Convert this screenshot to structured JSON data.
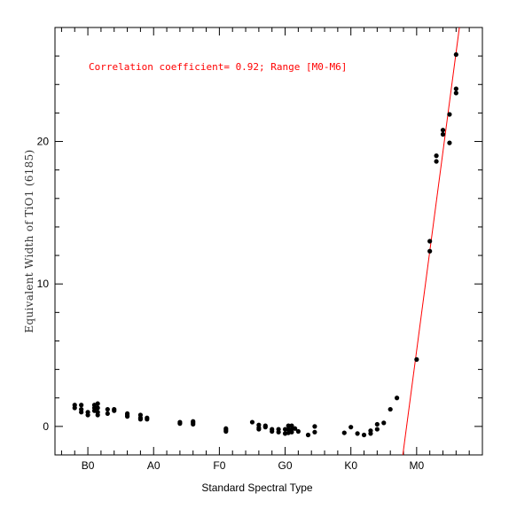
{
  "chart_data": {
    "type": "scatter",
    "xlabel": "Standard Spectral Type",
    "ylabel": "Equivalent Width of TiO1 (6185)",
    "annotation": "Correlation coefficient= 0.92; Range [M0-M6]",
    "annotation_color": "#ff0000",
    "fit_color": "#ff0000",
    "point_color": "#000000",
    "grid": false,
    "xlim": [
      -5,
      60
    ],
    "ylim": [
      -2,
      28
    ],
    "x_ticks": [
      {
        "value": 0,
        "label": "B0"
      },
      {
        "value": 10,
        "label": "A0"
      },
      {
        "value": 20,
        "label": "F0"
      },
      {
        "value": 30,
        "label": "G0"
      },
      {
        "value": 40,
        "label": "K0"
      },
      {
        "value": 50,
        "label": "M0"
      }
    ],
    "y_ticks": [
      {
        "value": 0,
        "label": "0"
      },
      {
        "value": 10,
        "label": "10"
      },
      {
        "value": 20,
        "label": "20"
      }
    ],
    "fit_line": {
      "x0": 47.9,
      "y0": -2,
      "x1": 56.5,
      "y1": 28
    },
    "points": [
      [
        -2,
        1.5
      ],
      [
        -2,
        1.3
      ],
      [
        -1,
        1.5
      ],
      [
        -1,
        1.2
      ],
      [
        -1,
        1.0
      ],
      [
        0,
        1.0
      ],
      [
        0,
        0.8
      ],
      [
        1,
        1.5
      ],
      [
        1,
        1.3
      ],
      [
        1,
        1.1
      ],
      [
        1.5,
        1.6
      ],
      [
        1.5,
        1.3
      ],
      [
        1.5,
        1.0
      ],
      [
        1.5,
        0.8
      ],
      [
        3,
        1.2
      ],
      [
        3,
        0.9
      ],
      [
        4,
        1.2
      ],
      [
        4,
        1.1
      ],
      [
        6,
        0.9
      ],
      [
        6,
        0.8
      ],
      [
        6,
        0.7
      ],
      [
        8,
        0.8
      ],
      [
        8,
        0.6
      ],
      [
        8,
        0.5
      ],
      [
        9,
        0.6
      ],
      [
        9,
        0.5
      ],
      [
        14,
        0.3
      ],
      [
        14,
        0.2
      ],
      [
        16,
        0.35
      ],
      [
        16,
        0.25
      ],
      [
        16,
        0.15
      ],
      [
        21,
        -0.15
      ],
      [
        21,
        -0.25
      ],
      [
        21,
        -0.35
      ],
      [
        25,
        0.3
      ],
      [
        26,
        0.1
      ],
      [
        26,
        -0.1
      ],
      [
        26,
        -0.2
      ],
      [
        27,
        0.05
      ],
      [
        27,
        -0.05
      ],
      [
        28,
        -0.2
      ],
      [
        28,
        -0.35
      ],
      [
        29,
        -0.2
      ],
      [
        29,
        -0.4
      ],
      [
        30,
        -0.2
      ],
      [
        30,
        -0.5
      ],
      [
        30.5,
        0.05
      ],
      [
        30.5,
        -0.2
      ],
      [
        30.5,
        -0.45
      ],
      [
        31,
        0.05
      ],
      [
        31,
        -0.2
      ],
      [
        31,
        -0.4
      ],
      [
        31.5,
        -0.15
      ],
      [
        32,
        -0.35
      ],
      [
        33.5,
        -0.6
      ],
      [
        34.5,
        0.0
      ],
      [
        34.5,
        -0.4
      ],
      [
        39,
        -0.45
      ],
      [
        40,
        -0.05
      ],
      [
        41,
        -0.5
      ],
      [
        42,
        -0.6
      ],
      [
        43,
        -0.3
      ],
      [
        43,
        -0.5
      ],
      [
        44,
        -0.2
      ],
      [
        44,
        0.15
      ],
      [
        45,
        0.25
      ],
      [
        46,
        1.2
      ],
      [
        47,
        2.0
      ],
      [
        50,
        4.7
      ],
      [
        52,
        13.0
      ],
      [
        52,
        12.3
      ],
      [
        53,
        19.0
      ],
      [
        53,
        18.6
      ],
      [
        54,
        20.8
      ],
      [
        54,
        20.5
      ],
      [
        55,
        21.9
      ],
      [
        55,
        19.9
      ],
      [
        56,
        26.1
      ],
      [
        56,
        23.7
      ],
      [
        56,
        23.4
      ]
    ]
  }
}
